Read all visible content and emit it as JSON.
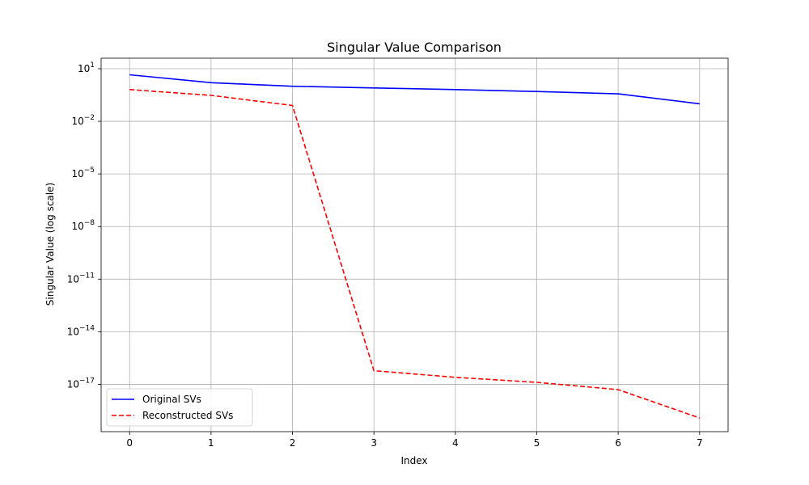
{
  "chart_data": {
    "type": "line",
    "title": "Singular Value Comparison",
    "xlabel": "Index",
    "ylabel": "Singular Value (log scale)",
    "yscale": "log",
    "x": [
      0,
      1,
      2,
      3,
      4,
      5,
      6,
      7
    ],
    "xticks": [
      "0",
      "1",
      "2",
      "3",
      "4",
      "5",
      "6",
      "7"
    ],
    "yticks": [
      {
        "base": "10",
        "exp": "1"
      },
      {
        "base": "10",
        "exp": "−2"
      },
      {
        "base": "10",
        "exp": "−5"
      },
      {
        "base": "10",
        "exp": "−8"
      },
      {
        "base": "10",
        "exp": "−11"
      },
      {
        "base": "10",
        "exp": "−14"
      },
      {
        "base": "10",
        "exp": "−17"
      }
    ],
    "ytick_exponents": [
      1,
      -2,
      -5,
      -8,
      -11,
      -14,
      -17
    ],
    "xlim": [
      -0.35,
      7.35
    ],
    "ylim_exp": [
      -19.7,
      1.6
    ],
    "grid": true,
    "legend_position": "lower-left",
    "series": [
      {
        "name": "Original SVs",
        "color": "#0000ff",
        "style": "solid",
        "values": [
          4.5,
          1.6,
          1.0,
          0.8,
          0.65,
          0.5,
          0.37,
          0.1
        ]
      },
      {
        "name": "Reconstructed SVs",
        "color": "#ff0000",
        "style": "dashed",
        "values": [
          0.65,
          0.3,
          0.08,
          6e-17,
          2.5e-17,
          1.3e-17,
          5e-18,
          1.2e-19
        ]
      }
    ]
  }
}
